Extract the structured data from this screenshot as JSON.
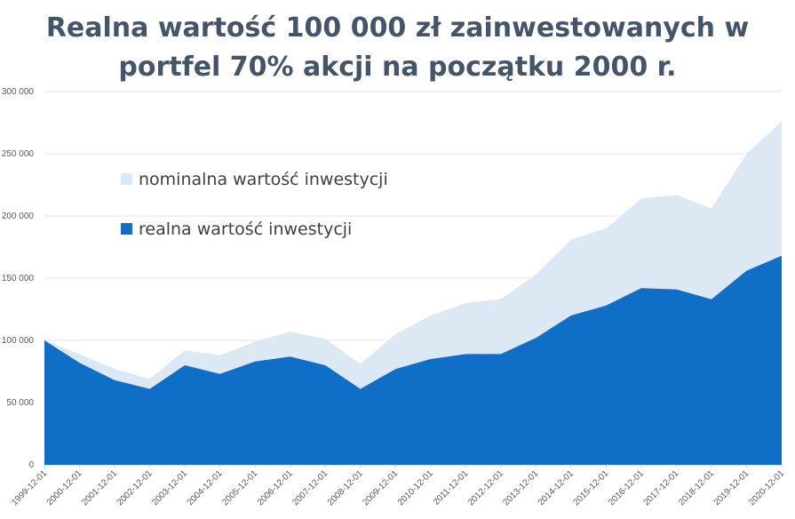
{
  "title": {
    "line1": "Realna wartość 100 000 zł zainwestowanych w",
    "line2": "portfel 70% akcji na początku 2000 r."
  },
  "chart_data": {
    "type": "area",
    "title": "Realna wartość 100 000 zł zainwestowanych w portfel 70% akcji na początku 2000 r.",
    "x": [
      "1999-12-01",
      "2000-12-01",
      "2001-12-01",
      "2002-12-01",
      "2003-12-01",
      "2004-12-01",
      "2005-12-01",
      "2006-12-01",
      "2007-12-01",
      "2008-12-01",
      "2009-12-01",
      "2010-12-01",
      "2011-12-01",
      "2012-12-01",
      "2013-12-01",
      "2014-12-01",
      "2015-12-01",
      "2016-12-01",
      "2017-12-01",
      "2018-12-01",
      "2019-12-01",
      "2020-12-01"
    ],
    "series": [
      {
        "name": "nominalna wartość inwestycji",
        "color": "#dde8f5",
        "values": [
          100000,
          89000,
          77000,
          69000,
          92000,
          88000,
          99000,
          107000,
          101000,
          81000,
          105000,
          120000,
          130000,
          133000,
          153000,
          181000,
          190000,
          214000,
          217000,
          206000,
          250000,
          276000
        ]
      },
      {
        "name": "realna wartość inwestycji",
        "color": "#0f6fc6",
        "values": [
          100000,
          82000,
          68000,
          61000,
          80000,
          73000,
          83000,
          87000,
          80000,
          61000,
          77000,
          85000,
          89000,
          89000,
          102000,
          120000,
          128000,
          142000,
          141000,
          133000,
          156000,
          168000
        ]
      }
    ],
    "y_ticks": [
      "0",
      "50 000",
      "100 000",
      "150 000",
      "200 000",
      "250 000",
      "300 000"
    ],
    "y_tick_values": [
      0,
      50000,
      100000,
      150000,
      200000,
      250000,
      300000
    ],
    "ylim": [
      0,
      300000
    ],
    "grid": true,
    "legend_position": "upper-left inside plot",
    "xlabel": "",
    "ylabel": ""
  }
}
